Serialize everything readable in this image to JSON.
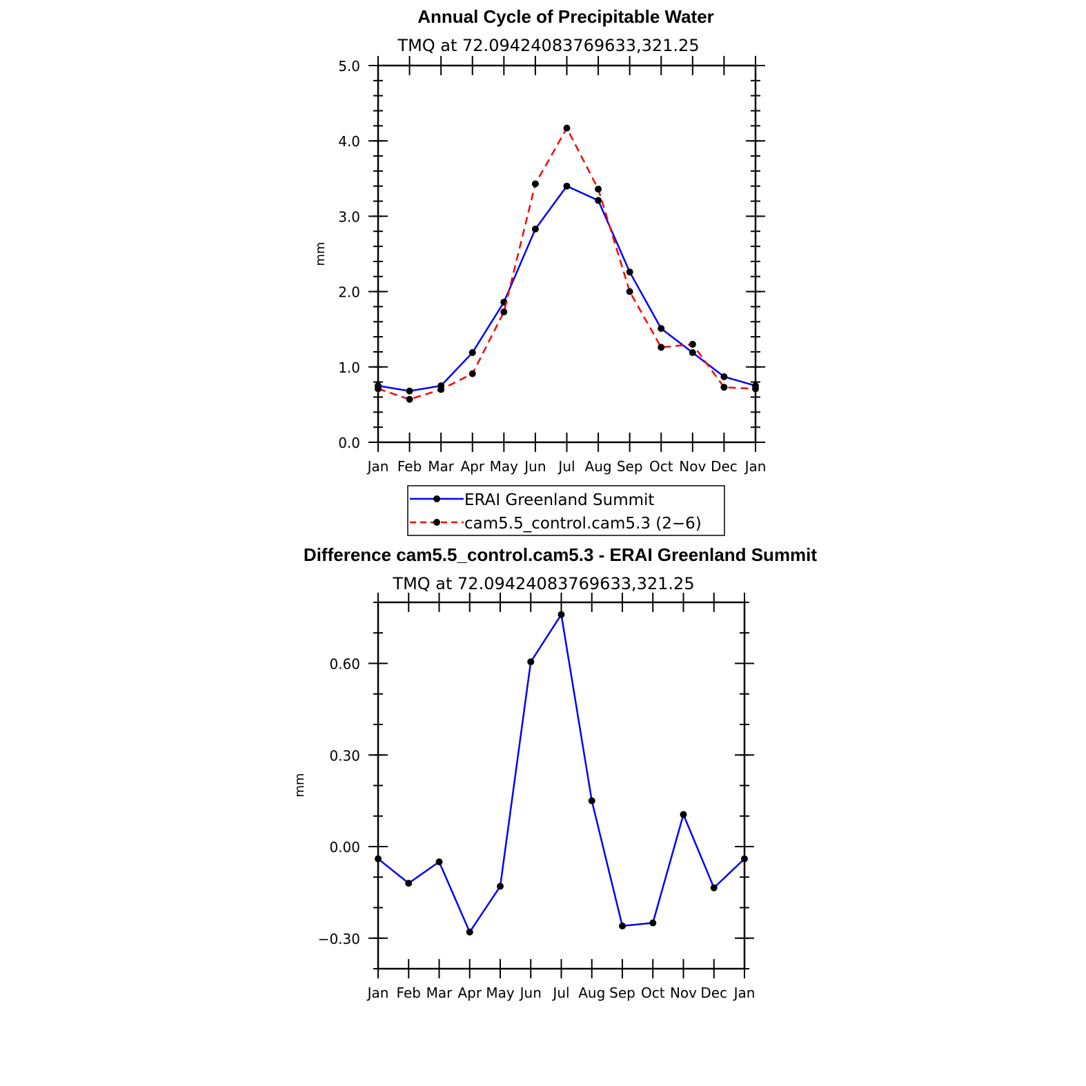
{
  "chart_data": [
    {
      "type": "line",
      "title": "Annual Cycle of Precipitable Water",
      "subtitle": "TMQ at 72.09424083769633,321.25",
      "xlabel": "",
      "ylabel": "mm",
      "categories": [
        "Jan",
        "Feb",
        "Mar",
        "Apr",
        "May",
        "Jun",
        "Jul",
        "Aug",
        "Sep",
        "Oct",
        "Nov",
        "Dec",
        "Jan"
      ],
      "ylim": [
        0,
        5
      ],
      "yticks": [
        0,
        1,
        2,
        3,
        4,
        5
      ],
      "ytick_labels": [
        "0.0",
        "1.0",
        "2.0",
        "3.0",
        "4.0",
        "5.0"
      ],
      "yminor_step": 0.2,
      "legend_position": "below",
      "series": [
        {
          "name": "ERAI Greenland Summit",
          "color": "#0000ff",
          "dash": "solid",
          "values": [
            0.75,
            0.68,
            0.75,
            1.19,
            1.86,
            2.83,
            3.4,
            3.21,
            2.26,
            1.51,
            1.19,
            0.87,
            0.75
          ]
        },
        {
          "name": "cam5.5_control.cam5.3 (2−6)",
          "color": "#ff0000",
          "dash": "dashed",
          "values": [
            0.71,
            0.57,
            0.7,
            0.91,
            1.73,
            3.43,
            4.17,
            3.36,
            2.0,
            1.26,
            1.3,
            0.73,
            0.71
          ]
        }
      ]
    },
    {
      "type": "line",
      "title": "Difference cam5.5_control.cam5.3 - ERAI Greenland Summit",
      "subtitle": "TMQ at 72.09424083769633,321.25",
      "xlabel": "",
      "ylabel": "mm",
      "categories": [
        "Jan",
        "Feb",
        "Mar",
        "Apr",
        "May",
        "Jun",
        "Jul",
        "Aug",
        "Sep",
        "Oct",
        "Nov",
        "Dec",
        "Jan"
      ],
      "ylim": [
        -0.4,
        0.8
      ],
      "yticks": [
        -0.3,
        0.0,
        0.3,
        0.6
      ],
      "ytick_labels": [
        "−0.30",
        "0.00",
        "0.30",
        "0.60"
      ],
      "yminor_step": 0.1,
      "series": [
        {
          "name": "Difference",
          "color": "#0000ff",
          "dash": "solid",
          "values": [
            -0.04,
            -0.12,
            -0.05,
            -0.28,
            -0.13,
            0.605,
            0.76,
            0.15,
            -0.26,
            -0.25,
            0.105,
            -0.135,
            -0.04
          ]
        }
      ]
    }
  ]
}
